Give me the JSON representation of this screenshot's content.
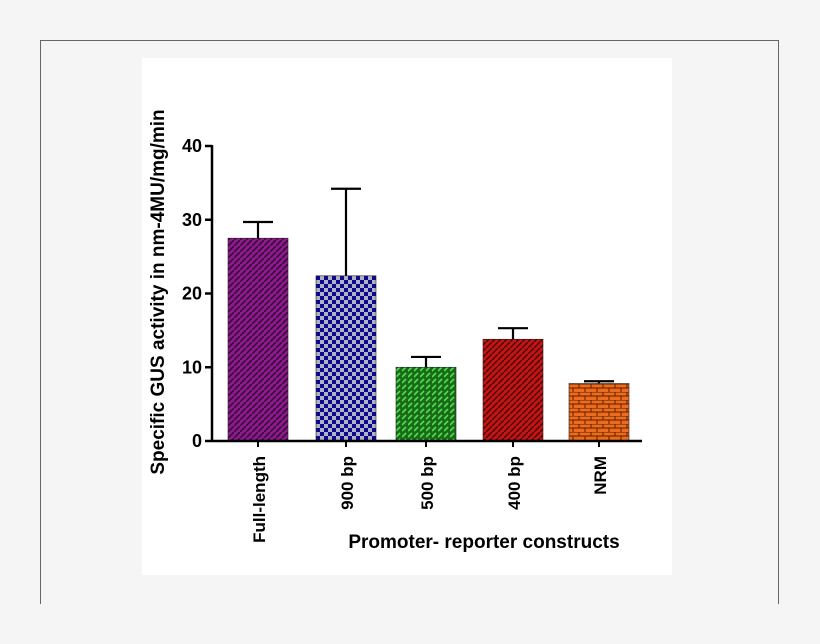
{
  "chart_data": {
    "type": "bar",
    "categories": [
      "Full-length",
      "900 bp",
      "500 bp",
      "400 bp",
      "NRM"
    ],
    "values": [
      27.5,
      22.4,
      10.0,
      13.8,
      7.8
    ],
    "error_upper": [
      29.7,
      34.2,
      11.4,
      15.3,
      8.1
    ],
    "colors": [
      "#8b1a8b",
      "#1a1a8c",
      "#2ec12e",
      "#b01010",
      "#ee6a1c"
    ],
    "patterns": [
      "diagonal-weave",
      "checkerboard",
      "green-weave",
      "diagonal-stripes",
      "brick"
    ],
    "xlabel": "Promoter- reporter constructs",
    "ylabel": "Specific GUS activity in nm-4MU/mg/min",
    "ylim": [
      0,
      40
    ],
    "yticks": [
      "0",
      "10",
      "20",
      "30",
      "40"
    ],
    "grid": false
  }
}
